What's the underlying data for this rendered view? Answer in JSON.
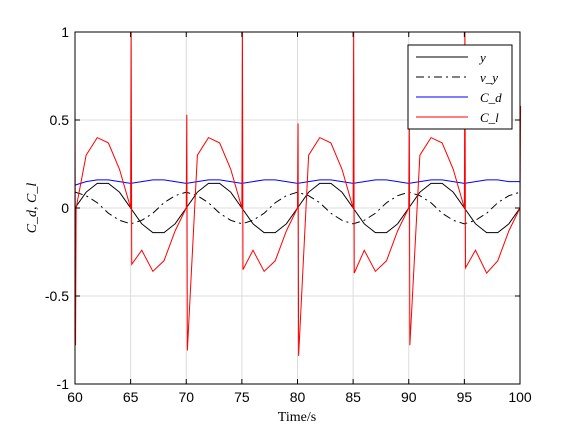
{
  "chart_data": {
    "type": "line",
    "title": "",
    "xlabel": "Time/s",
    "ylabel": "C_d, C_l",
    "xlim": [
      60,
      100
    ],
    "ylim": [
      -1,
      1
    ],
    "xticks": [
      60,
      65,
      70,
      75,
      80,
      85,
      90,
      95,
      100
    ],
    "yticks": [
      -1,
      -0.5,
      0,
      0.5,
      1
    ],
    "xtick_labels": [
      "60",
      "65",
      "70",
      "75",
      "80",
      "85",
      "90",
      "95",
      "100"
    ],
    "ytick_labels": [
      "-1",
      "-0.5",
      "0",
      "0.5",
      "1"
    ],
    "grid": true,
    "legend_position": "top-right",
    "series": [
      {
        "name": "y",
        "color": "#000000",
        "style": "solid",
        "x": [
          60,
          61,
          62,
          63,
          64,
          65,
          66,
          67,
          68,
          69,
          70,
          71,
          72,
          73,
          74,
          75,
          76,
          77,
          78,
          79,
          80,
          81,
          82,
          83,
          84,
          85,
          86,
          87,
          88,
          89,
          90,
          91,
          92,
          93,
          94,
          95,
          96,
          97,
          98,
          99,
          100
        ],
        "values": [
          0.0,
          0.09,
          0.14,
          0.14,
          0.09,
          0.0,
          -0.09,
          -0.14,
          -0.14,
          -0.09,
          0.0,
          0.09,
          0.14,
          0.14,
          0.09,
          0.0,
          -0.09,
          -0.14,
          -0.14,
          -0.09,
          0.0,
          0.09,
          0.14,
          0.14,
          0.09,
          0.0,
          -0.09,
          -0.14,
          -0.14,
          -0.09,
          0.0,
          0.09,
          0.14,
          0.14,
          0.09,
          0.0,
          -0.09,
          -0.14,
          -0.14,
          -0.09,
          0.0
        ]
      },
      {
        "name": "v_y",
        "color": "#000000",
        "style": "dashdot",
        "x": [
          60,
          61,
          62,
          63,
          64,
          65,
          66,
          67,
          68,
          69,
          70,
          71,
          72,
          73,
          74,
          75,
          76,
          77,
          78,
          79,
          80,
          81,
          82,
          83,
          84,
          85,
          86,
          87,
          88,
          89,
          90,
          91,
          92,
          93,
          94,
          95,
          96,
          97,
          98,
          99,
          100
        ],
        "values": [
          0.09,
          0.07,
          0.03,
          -0.03,
          -0.07,
          -0.09,
          -0.07,
          -0.03,
          0.03,
          0.07,
          0.09,
          0.07,
          0.03,
          -0.03,
          -0.07,
          -0.09,
          -0.07,
          -0.03,
          0.03,
          0.07,
          0.09,
          0.07,
          0.03,
          -0.03,
          -0.07,
          -0.09,
          -0.07,
          -0.03,
          0.03,
          0.07,
          0.09,
          0.07,
          0.03,
          -0.03,
          -0.07,
          -0.09,
          -0.07,
          -0.03,
          0.03,
          0.07,
          0.09
        ]
      },
      {
        "name": "C_d",
        "color": "#0000ff",
        "style": "solid",
        "x": [
          60,
          61,
          62,
          63,
          64,
          65,
          66,
          67,
          68,
          69,
          70,
          71,
          72,
          73,
          74,
          75,
          76,
          77,
          78,
          79,
          80,
          81,
          82,
          83,
          84,
          85,
          86,
          87,
          88,
          89,
          90,
          91,
          92,
          93,
          94,
          95,
          96,
          97,
          98,
          99,
          100
        ],
        "values": [
          0.13,
          0.15,
          0.16,
          0.16,
          0.15,
          0.14,
          0.15,
          0.16,
          0.16,
          0.15,
          0.14,
          0.15,
          0.16,
          0.16,
          0.15,
          0.14,
          0.15,
          0.16,
          0.16,
          0.15,
          0.14,
          0.15,
          0.16,
          0.16,
          0.15,
          0.14,
          0.15,
          0.16,
          0.16,
          0.15,
          0.14,
          0.15,
          0.16,
          0.16,
          0.15,
          0.14,
          0.15,
          0.16,
          0.16,
          0.15,
          0.15
        ]
      },
      {
        "name": "C_l",
        "color": "#ff0000",
        "style": "solid",
        "x": [
          60,
          60.05,
          60.1,
          61,
          62,
          63,
          64,
          65,
          65.05,
          65.1,
          66,
          67,
          68,
          69,
          70,
          70.05,
          70.1,
          71,
          72,
          73,
          74,
          75,
          75.05,
          75.1,
          76,
          77,
          78,
          79,
          80,
          80.05,
          80.1,
          81,
          82,
          83,
          84,
          85,
          85.05,
          85.1,
          86,
          87,
          88,
          89,
          90,
          90.05,
          90.1,
          91,
          92,
          93,
          94,
          95,
          95.05,
          95.1,
          96,
          97,
          98,
          99,
          100,
          100.05
        ],
        "values": [
          0.55,
          -0.78,
          0.0,
          0.3,
          0.4,
          0.37,
          0.22,
          0.0,
          1.0,
          -0.32,
          -0.24,
          -0.36,
          -0.3,
          -0.13,
          0.0,
          0.53,
          -0.81,
          0.3,
          0.4,
          0.37,
          0.22,
          0.0,
          1.0,
          -0.35,
          -0.24,
          -0.36,
          -0.3,
          -0.13,
          0.0,
          0.48,
          -0.84,
          0.3,
          0.4,
          0.37,
          0.22,
          0.0,
          1.0,
          -0.37,
          -0.24,
          -0.36,
          -0.3,
          -0.13,
          0.0,
          0.58,
          -0.78,
          0.3,
          0.4,
          0.37,
          0.22,
          0.0,
          1.0,
          -0.34,
          -0.24,
          -0.37,
          -0.3,
          -0.13,
          0.0,
          0.58
        ]
      }
    ]
  }
}
